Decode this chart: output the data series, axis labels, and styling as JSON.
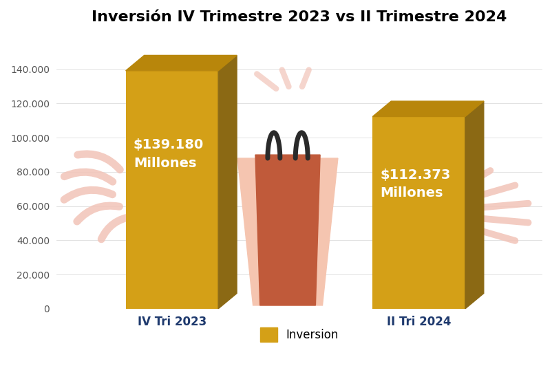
{
  "title": "Inversín IV Trimestre 2023 vs II Trimestre 2024",
  "title_fixed": "Inversín IV Trimestre 2023 vs II Trimestre 2024",
  "categories": [
    "IV Tri 2023",
    "II Tri 2024"
  ],
  "values": [
    139180,
    112373
  ],
  "bar_color_face": "#D4A017",
  "bar_color_top": "#B8860B",
  "bar_color_side": "#8B6914",
  "bar_labels": [
    "$139.180\nMillones",
    "$112.373\nMillones"
  ],
  "ylabel_ticks": [
    0,
    20000,
    40000,
    60000,
    80000,
    100000,
    120000,
    140000
  ],
  "ylim": [
    0,
    158000
  ],
  "legend_label": "Inversion",
  "legend_color": "#D4A017",
  "background_color": "#FFFFFF",
  "ray_color": "#F2C4B8",
  "bag_pink_color": "#F5C5B0",
  "bag_dark_color": "#C05A3A",
  "bag_handle_color": "#2A2A2A",
  "label_fontsize": 14,
  "title_fontsize": 16,
  "tick_fontsize": 10,
  "cat_fontsize": 12,
  "cat_color": "#1F3A6E"
}
